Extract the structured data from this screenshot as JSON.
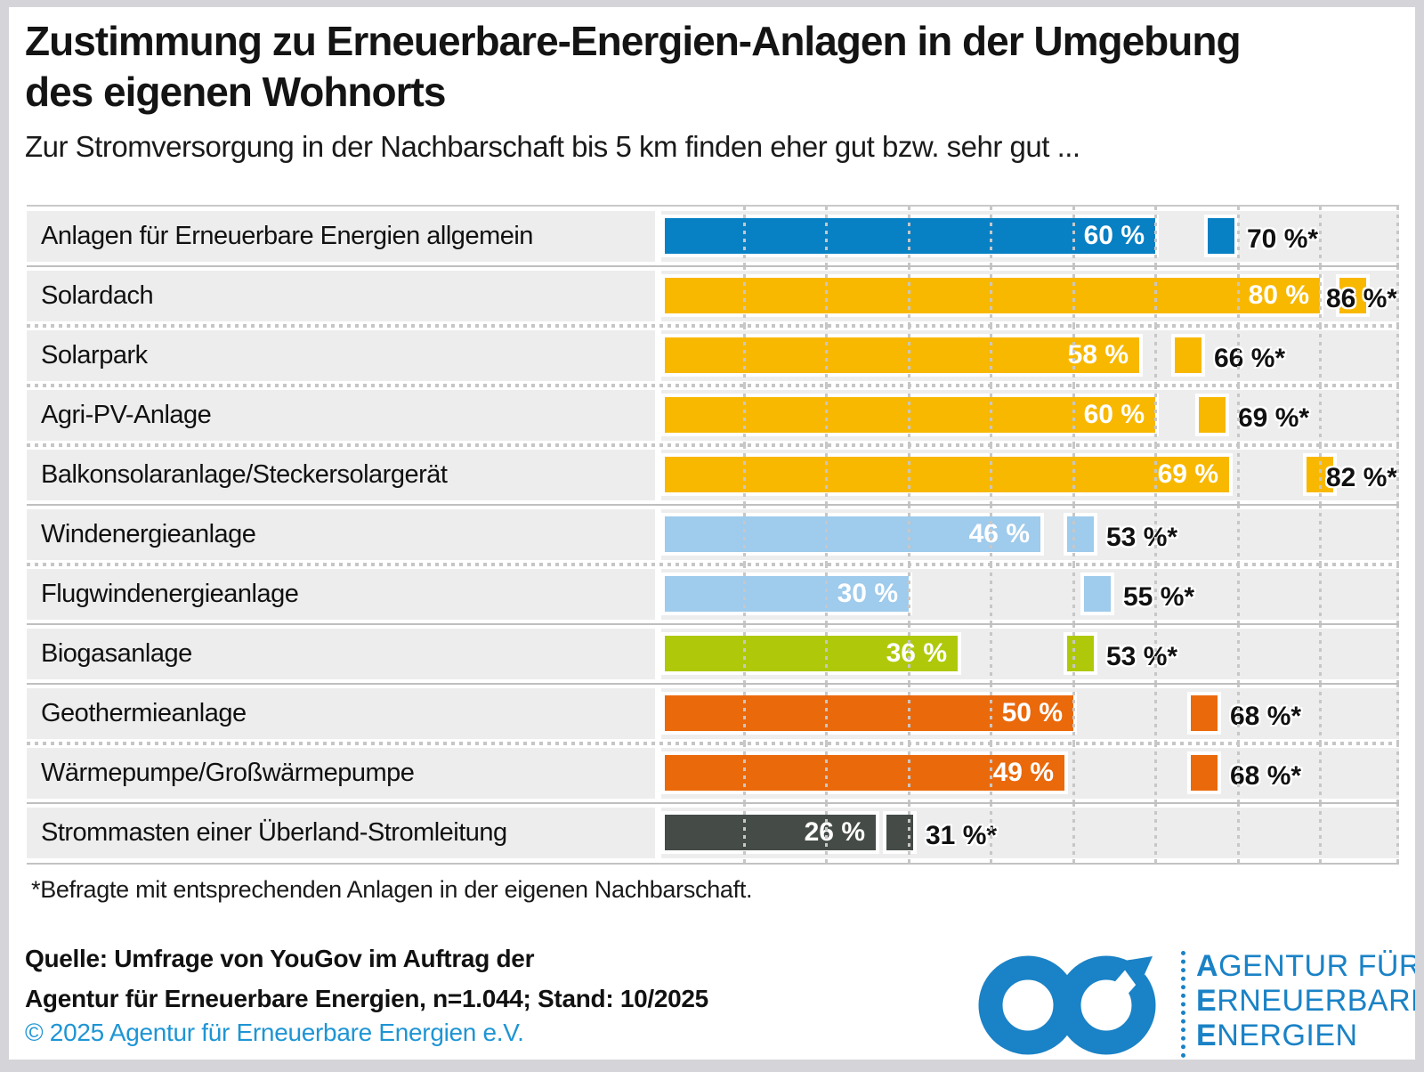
{
  "title": "Zustimmung zu Erneuerbare-Energien-Anlagen in der Umgebung des eigenen Wohnorts",
  "subtitle": "Zur Stromversorgung in der Nachbarschaft bis 5 km finden eher gut bzw. sehr gut ...",
  "footnote": "*Befragte mit entsprechenden Anlagen in der eigenen Nachbarschaft.",
  "source": {
    "line1": "Quelle: Umfrage von YouGov im Auftrag der",
    "line2": "Agentur für Erneuerbare Energien, n=1.044; Stand: 10/2025",
    "copyright": "© 2025 Agentur für Erneuerbare Energien e.V."
  },
  "logo": {
    "lines": [
      "AGENTUR FÜR",
      "ERNEUERBARE",
      "ENERGIEN"
    ],
    "color": "#1a82c6",
    "icon": "infinity-arrow-icon"
  },
  "chart_data": {
    "type": "bar",
    "orientation": "horizontal",
    "unit": "%",
    "xlim": [
      0,
      90
    ],
    "gridlines_every": 10,
    "grid": true,
    "categories": [
      "Anlagen für Erneuerbare Energien allgemein",
      "Solardach",
      "Solarpark",
      "Agri-PV-Anlage",
      "Balkonsolaranlage/Steckersolargerät",
      "Windenergieanlage",
      "Flugwindenergieanlage",
      "Biogasanlage",
      "Geothermieanlage",
      "Wärmepumpe/Großwärmepumpe",
      "Strommasten einer Überland-Stromleitung"
    ],
    "series": [
      {
        "name": "",
        "values": [
          60,
          80,
          58,
          60,
          69,
          46,
          30,
          36,
          50,
          49,
          26
        ]
      },
      {
        "name": "Befragte mit entsprechenden Anlagen in der eigenen Nachbarschaft",
        "values": [
          70,
          86,
          66,
          69,
          82,
          53,
          55,
          53,
          68,
          68,
          31
        ]
      }
    ],
    "value_suffix": " %",
    "marker_suffix": " %*",
    "bar_colors": [
      "#0880c4",
      "#f8b800",
      "#f8b800",
      "#f8b800",
      "#f8b800",
      "#9fcbec",
      "#9fcbec",
      "#afc90a",
      "#ea690b",
      "#ea690b",
      "#454b46"
    ],
    "separators_after": [
      "solid",
      "dotted",
      "dotted",
      "dotted",
      "solid",
      "dotted",
      "solid",
      "solid",
      "dotted",
      "solid"
    ]
  }
}
